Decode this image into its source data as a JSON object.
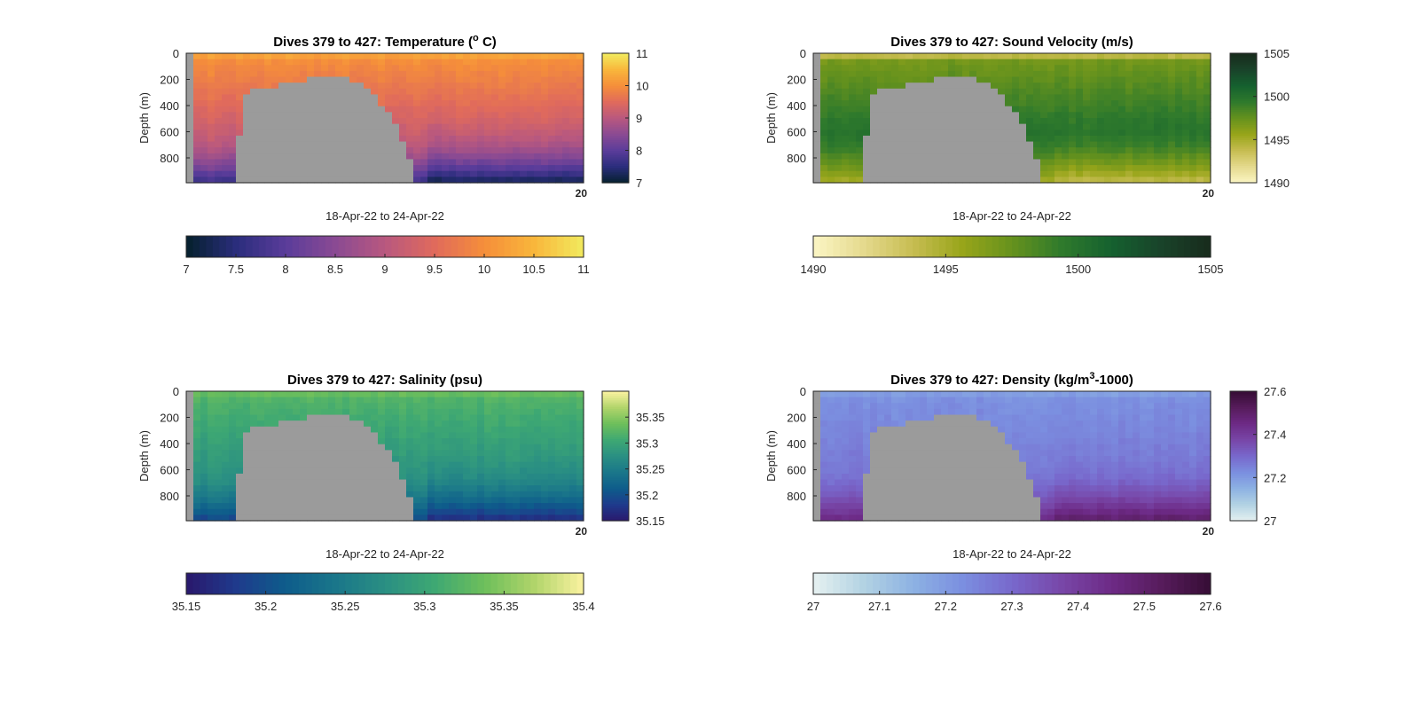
{
  "figure": {
    "background": "#ffffff",
    "mask_color": "#9b9b9b",
    "frame_color": "#262626"
  },
  "chart_data": [
    {
      "type": "heatmap",
      "title": "Dives 379 to 427: Temperature (",
      "title_sup": "o",
      "title_suffix": " C)",
      "xlabel": "18-Apr-22 to 24-Apr-22",
      "ylabel": "Depth (m)",
      "corner_label": "20",
      "yticks": [
        0,
        200,
        400,
        600,
        800
      ],
      "ylim": [
        0,
        990
      ],
      "colormap": "thermal",
      "side_cbar": {
        "ticks": [
          7,
          8,
          9,
          10,
          11
        ],
        "range": [
          7,
          11
        ]
      },
      "bottom_cbar": {
        "ticks": [
          7,
          7.5,
          8,
          8.5,
          9,
          9.5,
          10,
          10.5,
          11
        ],
        "range": [
          7,
          11
        ]
      },
      "values": {
        "top": 10.35,
        "mid": 10.0,
        "deep": 9.2,
        "bottom": 7.6
      }
    },
    {
      "type": "heatmap",
      "title": "Dives 379 to 427: Sound Velocity (m/s)",
      "xlabel": "18-Apr-22 to 24-Apr-22",
      "ylabel": "Depth (m)",
      "corner_label": "20",
      "yticks": [
        0,
        200,
        400,
        600,
        800
      ],
      "ylim": [
        0,
        990
      ],
      "colormap": "speed",
      "side_cbar": {
        "ticks": [
          1490,
          1495,
          1500,
          1505
        ],
        "range": [
          1490,
          1505
        ]
      },
      "bottom_cbar": {
        "ticks": [
          1490,
          1495,
          1500,
          1505
        ],
        "range": [
          1490,
          1505
        ]
      },
      "values": {
        "top": 1492.5,
        "mid": 1497,
        "deep": 1500,
        "bottom": 1495
      }
    },
    {
      "type": "heatmap",
      "title": "Dives 379 to 427: Salinity (psu)",
      "xlabel": "18-Apr-22 to 24-Apr-22",
      "ylabel": "Depth (m)",
      "corner_label": "20",
      "yticks": [
        0,
        200,
        400,
        600,
        800
      ],
      "ylim": [
        0,
        990
      ],
      "colormap": "haline",
      "side_cbar": {
        "ticks": [
          35.15,
          35.2,
          35.25,
          35.3,
          35.35
        ],
        "range": [
          35.15,
          35.4
        ]
      },
      "bottom_cbar": {
        "ticks": [
          35.15,
          35.2,
          35.25,
          35.3,
          35.35,
          35.4
        ],
        "range": [
          35.15,
          35.4
        ]
      },
      "values": {
        "top": 35.34,
        "mid": 35.32,
        "deep": 35.28,
        "bottom": 35.19
      }
    },
    {
      "type": "heatmap",
      "title": "Dives 379 to 427: Density (kg/m",
      "title_sup": "3",
      "title_suffix": "-1000)",
      "xlabel": "18-Apr-22 to 24-Apr-22",
      "ylabel": "Depth (m)",
      "corner_label": "20",
      "yticks": [
        0,
        200,
        400,
        600,
        800
      ],
      "ylim": [
        0,
        990
      ],
      "colormap": "dense",
      "side_cbar": {
        "ticks": [
          27,
          27.2,
          27.4,
          27.6
        ],
        "range": [
          27,
          27.6
        ]
      },
      "bottom_cbar": {
        "ticks": [
          27,
          27.1,
          27.2,
          27.3,
          27.4,
          27.5,
          27.6
        ],
        "range": [
          27,
          27.6
        ]
      },
      "values": {
        "top": 27.18,
        "mid": 27.22,
        "deep": 27.27,
        "bottom": 27.46
      }
    }
  ]
}
